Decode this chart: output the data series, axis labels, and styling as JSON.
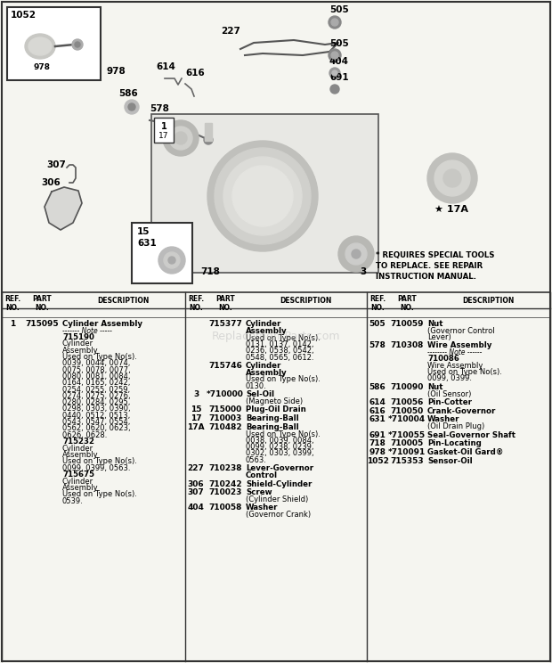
{
  "bg_color": "#f5f5f0",
  "table_bg": "#ffffff",
  "border_color": "#333333",
  "col1_entries": [
    {
      "ref": "1",
      "part": "715095",
      "bold_desc": "Cylinder Assembly",
      "note_dashes": "------- Note -----",
      "sub_entries": [
        {
          "part": "715190",
          "desc": "Cylinder\nAssembly\nUsed on Type No(s).\n0039, 0044, 0074,\n0075, 0078, 0077,\n0080, 0081, 0084,\n0164, 0165, 0242,\n0254, 0255, 0259,\n0274, 0275, 0276,\n0280, 0284, 0295,\n0298, 0303, 0390,\n0440, 0512, 0513,\n0543, 0547, 0554,\n0562, 0620, 0623,\n0626, 0628."
        },
        {
          "part": "715232",
          "desc": "Cylinder\nAssembly\nUsed on Type No(s).\n0099, 0399, 0563."
        },
        {
          "part": "715675",
          "desc": "Cylinder\nAssembly\nUsed on Type No(s).\n0539."
        }
      ]
    }
  ],
  "col2_entries": [
    {
      "ref": "",
      "part": "715377",
      "bold_desc": "Cylinder\nAssembly",
      "sub_entries": [
        {
          "part": "",
          "desc": "Used on Type No(s).\n0131, 0137, 0142,\n0236, 0538, 0542,\n0548, 0565, 0612."
        }
      ]
    },
    {
      "ref": "",
      "part": "715746",
      "bold_desc": "Cylinder\nAssembly",
      "sub_entries": [
        {
          "part": "",
          "desc": "Used on Type No(s).\n0130."
        }
      ]
    },
    {
      "ref": "3",
      "part": "*710000",
      "bold_desc": "Sel-Oil",
      "sub_entries": [
        {
          "part": "",
          "desc": "(Magneto Side)"
        }
      ]
    },
    {
      "ref": "15",
      "part": "715000",
      "bold_desc": "Plug-Oil Drain",
      "sub_entries": []
    },
    {
      "ref": "17",
      "part": "710003",
      "bold_desc": "Bearing-Ball",
      "sub_entries": []
    },
    {
      "ref": "17A",
      "part": "710482",
      "bold_desc": "Bearing-Ball",
      "sub_entries": [
        {
          "part": "",
          "desc": "Used on Type No(s).\n0038, 0039, 0084,\n0099, 0238, 0239,\n0302, 0303, 0399,\n0563."
        }
      ]
    },
    {
      "ref": "227",
      "part": "710238",
      "bold_desc": "Lever-Governor\nControl",
      "sub_entries": []
    },
    {
      "ref": "306",
      "part": "710242",
      "bold_desc": "Shield-Cylinder",
      "sub_entries": []
    },
    {
      "ref": "307",
      "part": "710023",
      "bold_desc": "Screw",
      "sub_entries": [
        {
          "part": "",
          "desc": "(Cylinder Shield)"
        }
      ]
    },
    {
      "ref": "404",
      "part": "710058",
      "bold_desc": "Washer",
      "sub_entries": [
        {
          "part": "",
          "desc": "(Governor Crank)"
        }
      ]
    }
  ],
  "col3_entries": [
    {
      "ref": "505",
      "part": "710059",
      "bold_desc": "Nut",
      "sub_entries": [
        {
          "part": "",
          "desc": "(Governor Control\nLever)"
        }
      ]
    },
    {
      "ref": "578",
      "part": "710308",
      "bold_desc": "Wire Assembly",
      "note_dashes": "-------- Note ------",
      "sub_entries": [
        {
          "part": "710086",
          "desc": "Wire Assembly\nUsed on Type No(s).\n0099, 0399."
        }
      ]
    },
    {
      "ref": "586",
      "part": "710090",
      "bold_desc": "Nut",
      "sub_entries": [
        {
          "part": "",
          "desc": "(Oil Sensor)"
        }
      ]
    },
    {
      "ref": "614",
      "part": "710056",
      "bold_desc": "Pin-Cotter",
      "sub_entries": []
    },
    {
      "ref": "616",
      "part": "710050",
      "bold_desc": "Crank-Governor",
      "sub_entries": []
    },
    {
      "ref": "631",
      "part": "*710004",
      "bold_desc": "Washer",
      "sub_entries": [
        {
          "part": "",
          "desc": "(Oil Drain Plug)"
        }
      ]
    },
    {
      "ref": "691",
      "part": "*710055",
      "bold_desc": "Seal-Governor Shaft",
      "sub_entries": []
    },
    {
      "ref": "718",
      "part": "710005",
      "bold_desc": "Pin-Locating",
      "sub_entries": []
    },
    {
      "ref": "978",
      "part": "*710091",
      "bold_desc": "Gasket-Oil Gard®",
      "sub_entries": []
    },
    {
      "ref": "1052",
      "part": "715353",
      "bold_desc": "Sensor-Oil",
      "sub_entries": []
    }
  ],
  "special_note": "* REQUIRES SPECIAL TOOLS\nTO REPLACE. SEE REPAIR\nINSTRUCTION MANUAL.",
  "watermark": "ReplacementParts.com"
}
